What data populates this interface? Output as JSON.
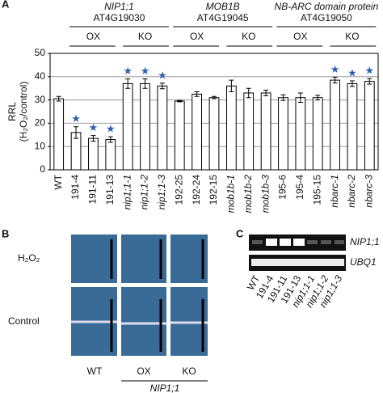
{
  "chart_data": {
    "type": "bar",
    "panel_labels": [
      "A",
      "B",
      "C"
    ],
    "ylabel": [
      "RRL",
      "(H₂O₂/control)"
    ],
    "categories": [
      "WT",
      "191-4",
      "191-11",
      "191-13",
      "nip1;1-1",
      "nip1;1-2",
      "nip1;1-3",
      "192-25",
      "192-24",
      "192-15",
      "mob1b-1",
      "mob1b-2",
      "mob1b-3",
      "195-6",
      "195-4",
      "195-15",
      "nbarc-1",
      "nbarc-2",
      "nbarc-3"
    ],
    "values": [
      30.5,
      16,
      13.5,
      13,
      37,
      37,
      36,
      29.5,
      32.5,
      31,
      36,
      33,
      33,
      31,
      31,
      31,
      38.5,
      37,
      38
    ],
    "errors": [
      1,
      2.5,
      1.2,
      1.2,
      2,
      2,
      1.2,
      0.3,
      1,
      0.5,
      2.5,
      2,
      1.2,
      1.2,
      2,
      1,
      1.2,
      1.2,
      1.2
    ],
    "markers": [
      null,
      "★",
      "★",
      "★",
      "★",
      "★",
      "★",
      null,
      null,
      null,
      null,
      null,
      null,
      null,
      null,
      null,
      "★",
      "★",
      "★"
    ],
    "color": "#ffffff",
    "marker_color": "#3060b0",
    "ylim": [
      0,
      50
    ],
    "yticks": [
      0,
      10,
      20,
      30,
      40,
      50
    ],
    "grid": true,
    "groups": [
      {
        "gene": "NIP1;1",
        "locus": "AT4G19030",
        "ox": "OX",
        "ko": "KO"
      },
      {
        "gene": "MOB1B",
        "locus": "AT4G19045",
        "ox": "OX",
        "ko": "KO"
      },
      {
        "gene": "NB-ARC domain protein",
        "locus": "AT4G19050",
        "ox": "OX",
        "ko": "KO"
      }
    ],
    "panel_b": {
      "rows": [
        "H₂O₂",
        "Control"
      ],
      "columns": [
        "WT",
        "OX",
        "KO"
      ],
      "gene": "NIP1;1"
    },
    "panel_c": {
      "bands": [
        "NIP1;1",
        "UBQ1"
      ],
      "lanes": [
        "WT",
        "191-4",
        "191-11",
        "191-13",
        "nip1;1-1",
        "nip1;1-2",
        "nip1;1-3"
      ]
    }
  }
}
